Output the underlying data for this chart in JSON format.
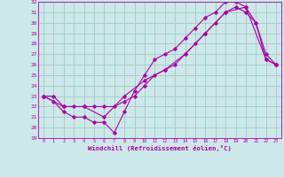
{
  "xlabel": "Windchill (Refroidissement éolien,°C)",
  "background_color": "#cce8e8",
  "grid_color": "#aacccc",
  "line_color": "#aa00aa",
  "xlim": [
    -0.5,
    23.5
  ],
  "ylim": [
    19,
    32
  ],
  "xticks": [
    0,
    1,
    2,
    3,
    4,
    5,
    6,
    7,
    8,
    9,
    10,
    11,
    12,
    13,
    14,
    15,
    16,
    17,
    18,
    19,
    20,
    21,
    22,
    23
  ],
  "yticks": [
    19,
    20,
    21,
    22,
    23,
    24,
    25,
    26,
    27,
    28,
    29,
    30,
    31,
    32
  ],
  "series1_x": [
    0,
    1,
    2,
    3,
    4,
    5,
    6,
    7,
    8,
    9,
    10,
    11,
    12,
    13,
    14,
    15,
    16,
    17,
    18,
    19,
    20,
    21,
    22,
    23
  ],
  "series1_y": [
    23,
    22.5,
    21.5,
    21,
    21,
    20.5,
    20.5,
    19.5,
    21.5,
    23.5,
    25,
    26.5,
    27,
    27.5,
    28.5,
    29.5,
    30.5,
    31,
    32,
    32,
    31.5,
    30,
    26.5,
    26
  ],
  "series2_x": [
    0,
    1,
    2,
    3,
    4,
    5,
    6,
    7,
    8,
    9,
    10,
    11,
    12,
    13,
    14,
    15,
    16,
    17,
    18,
    19,
    20,
    21,
    22,
    23
  ],
  "series2_y": [
    23,
    23,
    22,
    22,
    22,
    22,
    22,
    22,
    22.5,
    23,
    24,
    25,
    25.5,
    26,
    27,
    28,
    29,
    30,
    31,
    31.5,
    31,
    30,
    27,
    26
  ],
  "series3_x": [
    0,
    2,
    4,
    6,
    8,
    10,
    12,
    14,
    16,
    18,
    20,
    22,
    23
  ],
  "series3_y": [
    23,
    22,
    22,
    21,
    23,
    24.5,
    25.5,
    27,
    29,
    31,
    31.5,
    26.5,
    26
  ]
}
